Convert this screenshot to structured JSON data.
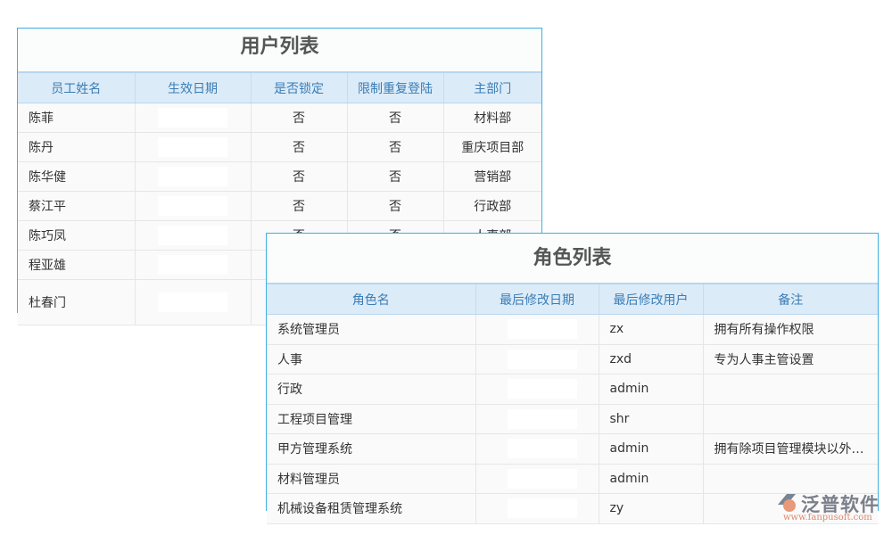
{
  "user_table": {
    "title": "用户列表",
    "headers": [
      "员工姓名",
      "生效日期",
      "是否锁定",
      "限制重复登陆",
      "主部门"
    ],
    "rows": [
      [
        "陈菲",
        "",
        "否",
        "否",
        "材料部"
      ],
      [
        "陈丹",
        "",
        "否",
        "否",
        "重庆项目部"
      ],
      [
        "陈华健",
        "",
        "否",
        "否",
        "营销部"
      ],
      [
        "蔡江平",
        "",
        "否",
        "否",
        "行政部"
      ],
      [
        "陈巧凤",
        "",
        "否",
        "否",
        "人事部"
      ],
      [
        "程亚雄",
        "",
        "",
        "",
        ""
      ],
      [
        "杜春门",
        "",
        "",
        "",
        ""
      ]
    ]
  },
  "role_table": {
    "title": "角色列表",
    "headers": [
      "角色名",
      "最后修改日期",
      "最后修改用户",
      "备注"
    ],
    "rows": [
      [
        "系统管理员",
        "",
        "zx",
        "拥有所有操作权限"
      ],
      [
        "人事",
        "",
        "zxd",
        "专为人事主管设置"
      ],
      [
        "行政",
        "",
        "admin",
        ""
      ],
      [
        "工程项目管理",
        "",
        "shr",
        ""
      ],
      [
        "甲方管理系统",
        "",
        "admin",
        "拥有除项目管理模块以外…"
      ],
      [
        "材料管理员",
        "",
        "admin",
        ""
      ],
      [
        "机械设备租赁管理系统",
        "",
        "zy",
        ""
      ]
    ]
  },
  "logo": {
    "name": "泛普软件",
    "url": "www.fanpusoft.com"
  }
}
